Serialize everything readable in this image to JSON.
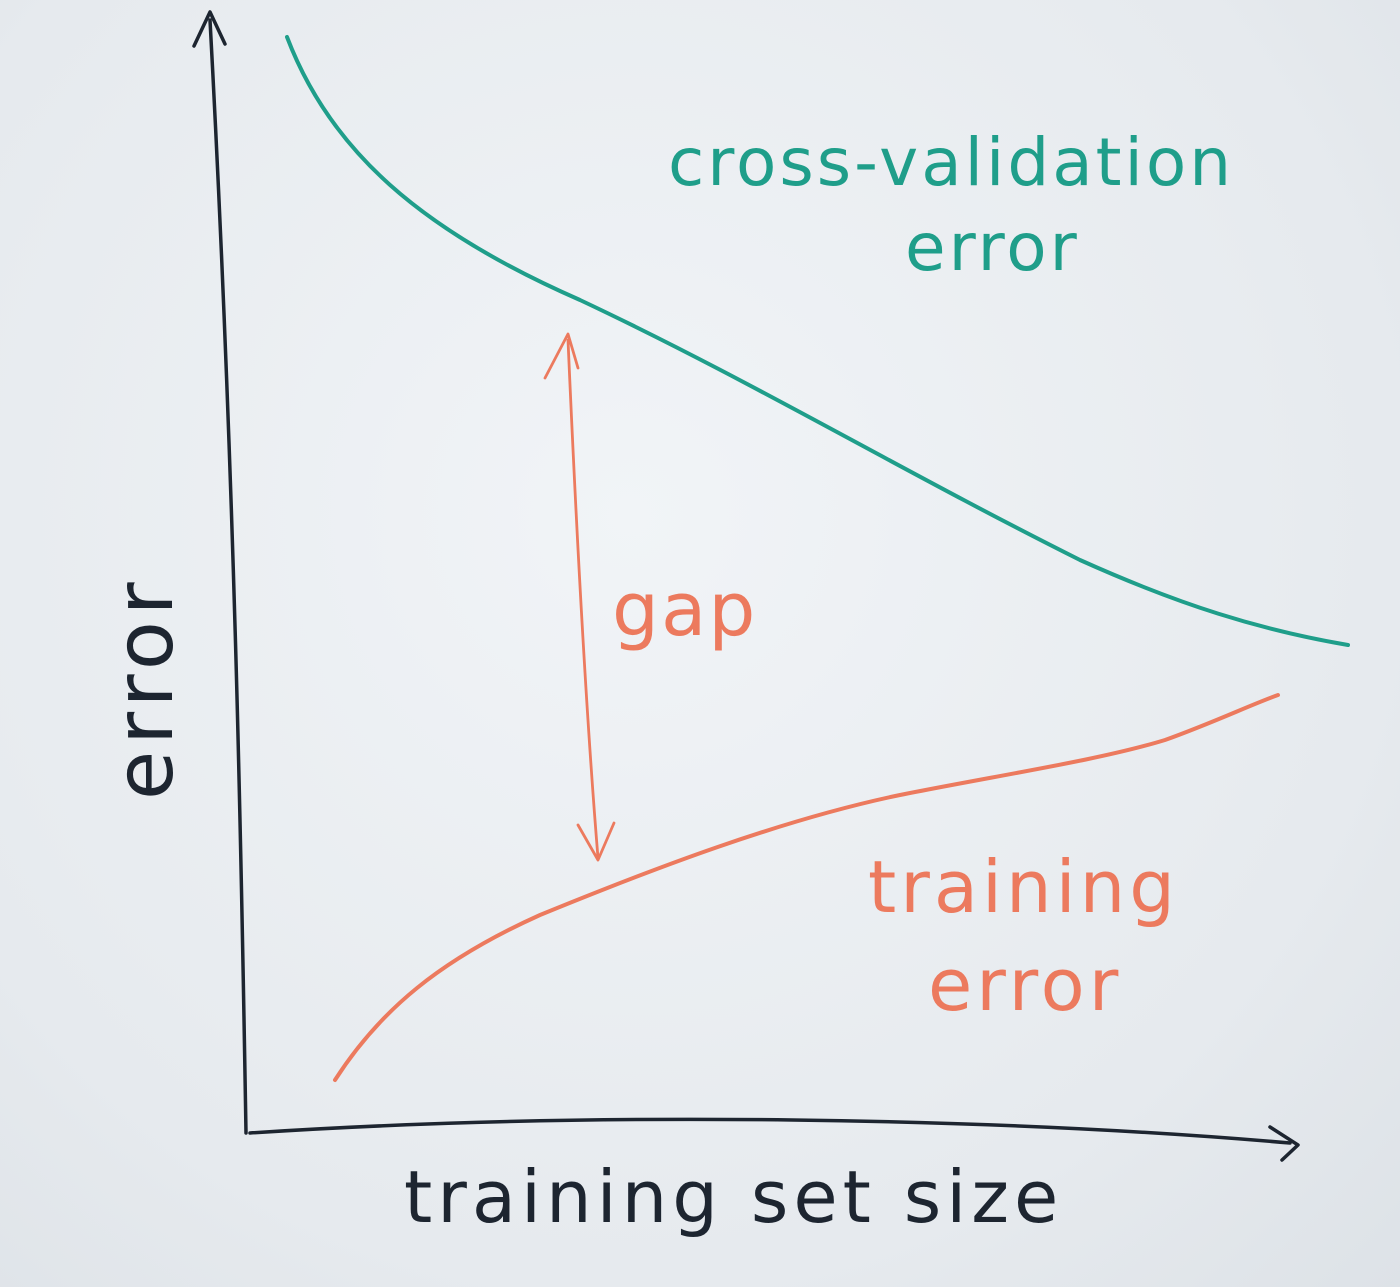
{
  "diagram": {
    "axes": {
      "x_label": "training set size",
      "y_label": "error"
    },
    "curves": [
      {
        "id": "cv",
        "label_lines": [
          "cross-validation",
          "error"
        ],
        "color": "#1f9e8a"
      },
      {
        "id": "train",
        "label_lines": [
          "training",
          "error"
        ],
        "color": "#ec7a5e"
      }
    ],
    "gap": {
      "label": "gap",
      "color": "#ec7a5e"
    },
    "ink_color": "#1d2530"
  }
}
